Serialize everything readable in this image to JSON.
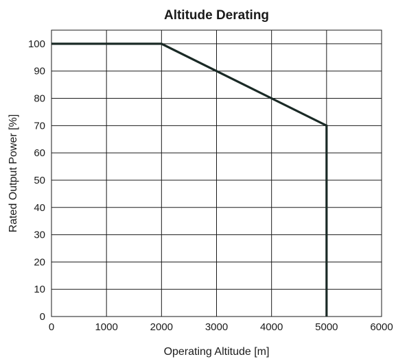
{
  "chart_data": {
    "type": "line",
    "title": "Altitude Derating",
    "xlabel": "Operating Altitude [m]",
    "ylabel": "Rated Output Power [%]",
    "xlim": [
      0,
      6000
    ],
    "ylim": [
      0,
      105
    ],
    "xticks": [
      0,
      1000,
      2000,
      3000,
      4000,
      5000,
      6000
    ],
    "yticks": [
      0,
      10,
      20,
      30,
      40,
      50,
      60,
      70,
      80,
      90,
      100
    ],
    "grid": true,
    "series": [
      {
        "x": [
          0,
          2000,
          5000,
          5000
        ],
        "y": [
          100,
          100,
          70,
          0
        ],
        "color": "#1a2a26"
      }
    ]
  }
}
